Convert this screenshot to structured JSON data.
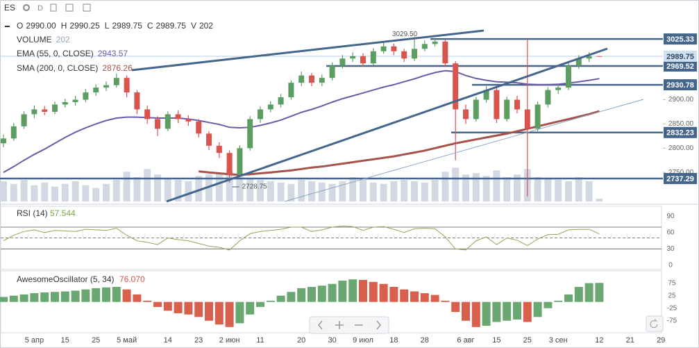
{
  "toolbar": {
    "symbol": "ES",
    "interval": "D"
  },
  "chart_data": [
    {
      "type": "candlestick",
      "header": [
        {
          "key": "O",
          "value": "2990.00"
        },
        {
          "key": "H",
          "value": "2990.25"
        },
        {
          "key": "L",
          "value": "2989.75"
        },
        {
          "key": "C",
          "value": "2989.75"
        },
        {
          "key": "V",
          "value": "202"
        }
      ],
      "categories": [
        null,
        null,
        null,
        "5 апр",
        null,
        null,
        "15",
        null,
        null,
        "25",
        null,
        null,
        "5 май",
        null,
        null,
        null,
        "14",
        null,
        null,
        "23",
        null,
        null,
        "2 июн",
        null,
        null,
        "11",
        null,
        null,
        null,
        "20",
        null,
        null,
        "30",
        null,
        null,
        "9 июл",
        null,
        null,
        "18",
        null,
        null,
        "28",
        null,
        null,
        null,
        "6 авг",
        null,
        null,
        "15",
        null,
        null,
        "25",
        null,
        null,
        "3 сен",
        null,
        null,
        null,
        "12",
        null,
        null,
        "21",
        null,
        null,
        "29",
        null
      ],
      "open": [
        2810,
        2820,
        2845,
        2870,
        2880,
        2875,
        2890,
        2895,
        2900,
        2915,
        2925,
        2930,
        2945,
        2915,
        2880,
        2860,
        2840,
        2870,
        2860,
        2855,
        2830,
        2805,
        2790,
        2745,
        2800,
        2860,
        2880,
        2890,
        2905,
        2935,
        2950,
        2935,
        2945,
        2970,
        2985,
        2990,
        2975,
        3000,
        3010,
        3000,
        2985,
        3005,
        3015,
        3020,
        2975,
        2880,
        2860,
        2900,
        2920,
        2860,
        2900,
        2880,
        2840,
        2890,
        2920,
        2925,
        2970,
        2985,
        2990,
        null,
        null,
        null,
        null,
        null,
        null,
        null
      ],
      "high": [
        2828,
        2852,
        2876,
        2888,
        2887,
        2896,
        2902,
        2908,
        2922,
        2932,
        2938,
        2954,
        2950,
        2920,
        2888,
        2866,
        2876,
        2878,
        2868,
        2860,
        2835,
        2812,
        2795,
        2806,
        2866,
        2886,
        2897,
        2912,
        2940,
        2958,
        2955,
        2952,
        2977,
        2992,
        2998,
        2996,
        3006,
        3018,
        3016,
        3005,
        3029.5,
        3022,
        3026,
        3024,
        2980,
        2890,
        2906,
        2928,
        2925,
        2906,
        2908,
        3025,
        2896,
        2926,
        2932,
        2976,
        2992,
        2998,
        2990.25,
        null,
        null,
        null,
        null,
        null,
        null,
        null
      ],
      "low": [
        2802,
        2815,
        2840,
        2862,
        2868,
        2870,
        2884,
        2888,
        2895,
        2908,
        2918,
        2925,
        2905,
        2870,
        2850,
        2825,
        2835,
        2852,
        2846,
        2822,
        2796,
        2780,
        2728.75,
        2740,
        2795,
        2852,
        2874,
        2884,
        2900,
        2928,
        2928,
        2928,
        2940,
        2964,
        2978,
        2968,
        2970,
        2995,
        2992,
        2978,
        2980,
        3000,
        3010,
        2968,
        2775,
        2850,
        2855,
        2894,
        2852,
        2855,
        2872,
        2700,
        2835,
        2884,
        2912,
        2920,
        2964,
        2978,
        2989.75,
        null,
        null,
        null,
        null,
        null,
        null,
        null
      ],
      "close": [
        2820,
        2845,
        2870,
        2880,
        2875,
        2890,
        2895,
        2900,
        2915,
        2925,
        2930,
        2945,
        2915,
        2880,
        2860,
        2840,
        2870,
        2860,
        2855,
        2830,
        2805,
        2790,
        2745,
        2800,
        2860,
        2880,
        2890,
        2905,
        2935,
        2950,
        2935,
        2945,
        2970,
        2985,
        2990,
        2975,
        3000,
        3010,
        3000,
        2985,
        3005,
        3015,
        3020,
        2975,
        2880,
        2860,
        2900,
        2920,
        2860,
        2900,
        2880,
        2840,
        2890,
        2920,
        2925,
        2970,
        2985,
        2990,
        2989.75,
        null,
        null,
        null,
        null,
        null,
        null,
        null
      ],
      "high_labels": [
        null,
        null,
        null,
        null,
        null,
        null,
        null,
        null,
        null,
        null,
        null,
        null,
        null,
        null,
        null,
        null,
        null,
        null,
        null,
        null,
        null,
        null,
        null,
        null,
        null,
        null,
        null,
        null,
        null,
        null,
        null,
        null,
        null,
        null,
        null,
        null,
        null,
        null,
        null,
        null,
        "3029.50",
        null,
        null,
        null,
        null,
        null,
        null,
        null,
        null,
        null,
        null,
        null,
        null,
        null,
        null,
        null,
        null,
        null,
        null,
        null,
        null,
        null,
        null,
        null,
        null,
        null
      ],
      "low_labels": [
        null,
        null,
        null,
        null,
        null,
        null,
        null,
        null,
        null,
        null,
        null,
        null,
        null,
        null,
        null,
        null,
        null,
        null,
        null,
        null,
        null,
        null,
        "2728.75",
        null,
        null,
        null,
        null,
        null,
        null,
        null,
        null,
        null,
        null,
        null,
        null,
        null,
        null,
        null,
        null,
        null,
        null,
        null,
        null,
        null,
        null,
        null,
        null,
        null,
        null,
        null,
        null,
        null,
        null,
        null,
        null,
        null,
        null,
        null,
        null,
        null,
        null,
        null,
        null,
        null,
        null,
        null
      ],
      "up_color": "#5c9e62",
      "down_color": "#d9534f",
      "volume": {
        "name": "VOLUME",
        "value_label": "202",
        "color": "#d3d9e3",
        "ylim": [
          0,
          14000
        ],
        "values": [
          1500,
          1300,
          1600,
          1200,
          1400,
          1100,
          1300,
          1500,
          1200,
          1000,
          1300,
          1600,
          2200,
          1800,
          2400,
          2000,
          1700,
          1600,
          1500,
          1900,
          2000,
          2100,
          2300,
          1800,
          1700,
          1600,
          1500,
          1400,
          1300,
          1600,
          1500,
          1400,
          1300,
          1500,
          1800,
          1600,
          1400,
          1300,
          1500,
          1600,
          1500,
          1400,
          1600,
          2200,
          2500,
          2000,
          2100,
          1900,
          2300,
          1800,
          2000,
          2400,
          1800,
          1700,
          1600,
          1500,
          1800,
          1500,
          202,
          null,
          null,
          null,
          null,
          null,
          null,
          null
        ]
      },
      "series": [
        {
          "name": "EMA (55, 0, CLOSE)",
          "value_label": "2943.57",
          "color": "#6a5aa8",
          "values": [
            2750,
            2762,
            2775,
            2787,
            2798,
            2810,
            2822,
            2833,
            2842,
            2850,
            2857,
            2862,
            2864,
            2864,
            2863,
            2862,
            2862,
            2862,
            2860,
            2857,
            2853,
            2849,
            2843,
            2842,
            2843,
            2847,
            2852,
            2858,
            2866,
            2874,
            2880,
            2887,
            2895,
            2902,
            2908,
            2914,
            2920,
            2926,
            2931,
            2937,
            2943,
            2950,
            2956,
            2960,
            2958,
            2950,
            2944,
            2940,
            2937,
            2936,
            2935,
            2932,
            2931,
            2931,
            2932,
            2934,
            2937,
            2940,
            2943.57,
            null,
            null,
            null,
            null,
            null,
            null,
            null
          ]
        },
        {
          "name": "SMA (200, 0, CLOSE)",
          "value_label": "2876.26",
          "color": "#a5524a",
          "values": [
            null,
            null,
            null,
            null,
            null,
            null,
            null,
            null,
            null,
            null,
            null,
            null,
            null,
            null,
            null,
            null,
            null,
            null,
            null,
            2752,
            2750,
            2748,
            2746,
            2745,
            2746,
            2748,
            2750,
            2752,
            2754,
            2757,
            2760,
            2762,
            2765,
            2768,
            2771,
            2774,
            2777,
            2780,
            2783,
            2787,
            2791,
            2795,
            2800,
            2805,
            2810,
            2814,
            2818,
            2822,
            2826,
            2830,
            2835,
            2840,
            2845,
            2850,
            2855,
            2860,
            2865,
            2870,
            2876.26,
            null,
            null,
            null,
            null,
            null,
            null,
            null
          ]
        }
      ],
      "ylim": [
        2690,
        3080
      ],
      "yticks": [
        {
          "value": 2750,
          "label": "2750.00"
        },
        {
          "value": 2800,
          "label": "2800.00"
        },
        {
          "value": 2850,
          "label": "2850.00"
        },
        {
          "value": 2900,
          "label": "2900.00"
        }
      ],
      "levels": [
        3025.33,
        2969.52,
        2930.78,
        2832.23,
        2737.29
      ],
      "level_color": "#45668c",
      "last_price": 2989.75
    },
    {
      "type": "line",
      "title": "RSI (14)",
      "value_label": "57.544",
      "color": "#9aa05a",
      "values": [
        45,
        55,
        62,
        65,
        60,
        64,
        63,
        62,
        66,
        65,
        64,
        68,
        55,
        45,
        42,
        38,
        50,
        47,
        45,
        40,
        35,
        33,
        28,
        45,
        58,
        62,
        64,
        66,
        70,
        70,
        62,
        65,
        70,
        72,
        71,
        64,
        70,
        71,
        66,
        60,
        67,
        68,
        67,
        52,
        30,
        28,
        45,
        52,
        38,
        50,
        46,
        36,
        48,
        56,
        57,
        65,
        66,
        66,
        57.544,
        null,
        null,
        null,
        null,
        null,
        null,
        null
      ],
      "ylim": [
        -13,
        107
      ],
      "yticks": [
        0,
        30,
        60,
        90
      ],
      "hlines": [
        70,
        50,
        30
      ]
    },
    {
      "type": "bar",
      "title": "AwesomeOscillator (5, 34)",
      "value_label": "76.070",
      "up_color": "#6aa872",
      "down_color": "#d8604c",
      "values": [
        20,
        25,
        30,
        35,
        38,
        40,
        42,
        45,
        50,
        55,
        58,
        60,
        50,
        30,
        5,
        -20,
        -35,
        -45,
        -50,
        -60,
        -75,
        -90,
        -100,
        -85,
        -50,
        -20,
        5,
        25,
        40,
        55,
        60,
        65,
        72,
        85,
        90,
        88,
        80,
        72,
        60,
        50,
        42,
        35,
        28,
        5,
        -40,
        -75,
        -100,
        -95,
        -80,
        -75,
        -70,
        -80,
        -60,
        -25,
        5,
        30,
        60,
        75,
        76.07,
        null,
        null,
        null,
        null,
        null,
        null,
        null
      ],
      "ylim": [
        -120,
        110
      ],
      "yticks": [
        -75,
        -25,
        25,
        75
      ]
    }
  ]
}
